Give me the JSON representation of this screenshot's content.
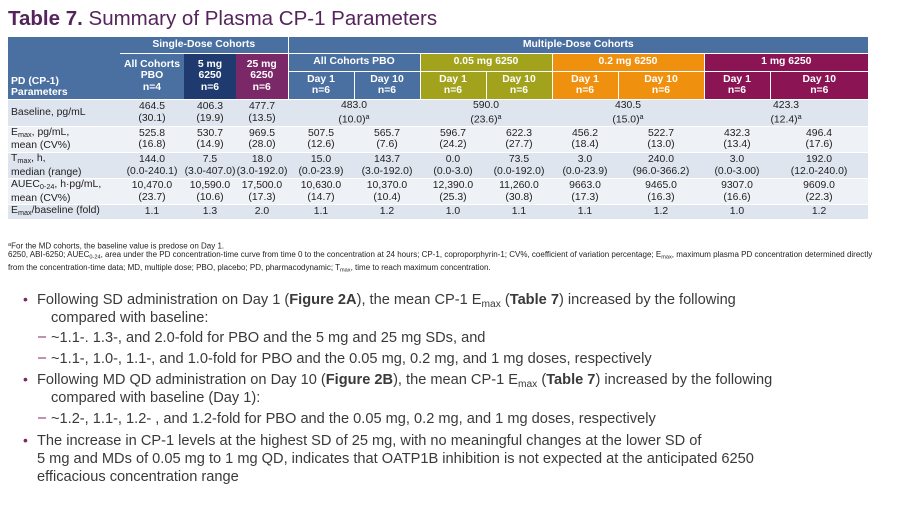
{
  "title": {
    "prefix": "Table 7.",
    "text": "Summary of Plasma CP-1 Parameters"
  },
  "table": {
    "group_headers": {
      "single_dose": "Single-Dose Cohorts",
      "multiple_dose": "Multiple-Dose Cohorts"
    },
    "row_header": {
      "line1": "PD (CP-1)",
      "line2": "Parameters"
    },
    "single_cohorts": [
      {
        "l1": "All Cohorts",
        "l2": "PBO",
        "n": "n=4"
      },
      {
        "l1": "5 mg",
        "l2": "6250",
        "n": "n=6"
      },
      {
        "l1": "25 mg",
        "l2": "6250",
        "n": "n=6"
      }
    ],
    "multi_cohorts": [
      {
        "label": "All Cohorts PBO",
        "d1": "Day 1",
        "d10": "Day 10",
        "n1": "n=6",
        "n10": "n=6"
      },
      {
        "label": "0.05 mg 6250",
        "d1": "Day 1",
        "d10": "Day 10",
        "n1": "n=6",
        "n10": "n=6"
      },
      {
        "label": "0.2 mg 6250",
        "d1": "Day 1",
        "d10": "Day 10",
        "n1": "n=6",
        "n10": "n=6"
      },
      {
        "label": "1 mg 6250",
        "d1": "Day 1",
        "d10": "Day 10",
        "n1": "n=6",
        "n10": "n=6"
      }
    ],
    "rows": {
      "baseline": {
        "label": "Baseline, pg/mL",
        "single": [
          [
            "464.5",
            "(30.1)"
          ],
          [
            "406.3",
            "(19.9)"
          ],
          [
            "477.7",
            "(13.5)"
          ]
        ],
        "multi": [
          [
            "483.0",
            "(10.0)",
            "a"
          ],
          [
            "590.0",
            "(23.6)",
            "a"
          ],
          [
            "430.5",
            "(15.0)",
            "a"
          ],
          [
            "423.3",
            "(12.4)",
            "a"
          ]
        ]
      },
      "emax": {
        "label_a": "E",
        "label_sub": "max",
        "label_b": ", pg/mL,",
        "label_c": "mean (CV%)",
        "values": [
          [
            "525.8",
            "(16.8)"
          ],
          [
            "530.7",
            "(14.9)"
          ],
          [
            "969.5",
            "(28.0)"
          ],
          [
            "507.5",
            "(12.6)"
          ],
          [
            "565.7",
            "(7.6)"
          ],
          [
            "596.7",
            "(24.2)"
          ],
          [
            "622.3",
            "(27.7)"
          ],
          [
            "456.2",
            "(18.4)"
          ],
          [
            "522.7",
            "(13.0)"
          ],
          [
            "432.3",
            "(13.4)"
          ],
          [
            "496.4",
            "(17.6)"
          ]
        ]
      },
      "tmax": {
        "label_a": "T",
        "label_sub": "max",
        "label_b": ", h,",
        "label_c": "median (range)",
        "values": [
          [
            "144.0",
            "(0.0-240.1)"
          ],
          [
            "7.5",
            "(3.0-407.0)"
          ],
          [
            "18.0",
            "(3.0-192.0)"
          ],
          [
            "15.0",
            "(0.0-23.9)"
          ],
          [
            "143.7",
            "(3.0-192.0)"
          ],
          [
            "0.0",
            "(0.0-3.0)"
          ],
          [
            "73.5",
            "(0.0-192.0)"
          ],
          [
            "3.0",
            "(0.0-23.9)"
          ],
          [
            "240.0",
            "(96.0-366.2)"
          ],
          [
            "3.0",
            "(0.0-3.00)"
          ],
          [
            "192.0",
            "(12.0-240.0)"
          ]
        ]
      },
      "auec": {
        "label_a": "AUEC",
        "label_sub": "0-24",
        "label_b": ", h·pg/mL,",
        "label_c": "mean (CV%)",
        "values": [
          [
            "10,470.0",
            "(23.7)"
          ],
          [
            "10,590.0",
            "(10.6)"
          ],
          [
            "17,500.0",
            "(17.3)"
          ],
          [
            "10,630.0",
            "(14.7)"
          ],
          [
            "10,370.0",
            "(10.4)"
          ],
          [
            "12,390.0",
            "(25.3)"
          ],
          [
            "11,260.0",
            "(30.8)"
          ],
          [
            "9663.0",
            "(17.3)"
          ],
          [
            "9465.0",
            "(16.3)"
          ],
          [
            "9307.0",
            "(16.6)"
          ],
          [
            "9609.0",
            "(22.3)"
          ]
        ]
      },
      "ratio": {
        "label_a": "E",
        "label_sub": "max",
        "label_b": "/baseline (fold)",
        "values": [
          "1.1",
          "1.3",
          "2.0",
          "1.1",
          "1.2",
          "1.0",
          "1.1",
          "1.1",
          "1.2",
          "1.0",
          "1.2"
        ]
      }
    }
  },
  "footnotes": {
    "a_mark": "a",
    "a_text": "For the MD cohorts, the baseline value is predose on Day 1.",
    "abbr_1": "6250, ABI-6250; AUEC",
    "abbr_1_sub": "0-24",
    "abbr_2": ", area under the PD concentration-time curve from time 0 to the concentration at 24 hours; CP-1, coproporphyrin-1; CV%, coefficient of variation percentage; E",
    "abbr_2_sub": "max",
    "abbr_3": ", maximum plasma PD concentration determined directly from the concentration-time data; MD, multiple dose; PBO, placebo; PD, pharmacodynamic; T",
    "abbr_3_sub": "max",
    "abbr_4": ", time to reach maximum concentration."
  },
  "bullets": {
    "b1": {
      "t1": "Following SD administration on Day 1 (",
      "fig": "Figure 2A",
      "t2": "), the mean CP-1 E",
      "sub": "max",
      "t3": " (",
      "tbl": "Table 7",
      "t4": ") increased by the following",
      "t5": "compared with baseline:"
    },
    "b1a": "~1.1-. 1.3-, and 2.0-fold for PBO and the 5 mg and 25 mg SDs, and",
    "b1b": "~1.1-, 1.0-, 1.1-, and 1.0-fold for PBO and the 0.05 mg, 0.2 mg, and 1 mg doses, respectively",
    "b2": {
      "t1": "Following MD QD administration on Day 10 (",
      "fig": "Figure 2B",
      "t2": "), the mean CP-1 E",
      "sub": "max",
      "t3": " (",
      "tbl": "Table 7",
      "t4": ") increased by the following",
      "t5": "compared with baseline (Day 1):"
    },
    "b2a": "~1.2-, 1.1-, 1.2- , and 1.2-fold for PBO and the 0.05 mg, 0.2 mg, and 1 mg doses, respectively",
    "b3": {
      "l1": "The increase in CP-1 levels at the highest SD of 25 mg, with no meaningful changes at the lower SD of",
      "l2": "5 mg and MDs of 0.05 mg to 1 mg QD, indicates that OATP1B inhibition is not expected at the anticipated 6250",
      "l3": "efficacious concentration range"
    },
    "dot": "•",
    "dash": "–"
  }
}
